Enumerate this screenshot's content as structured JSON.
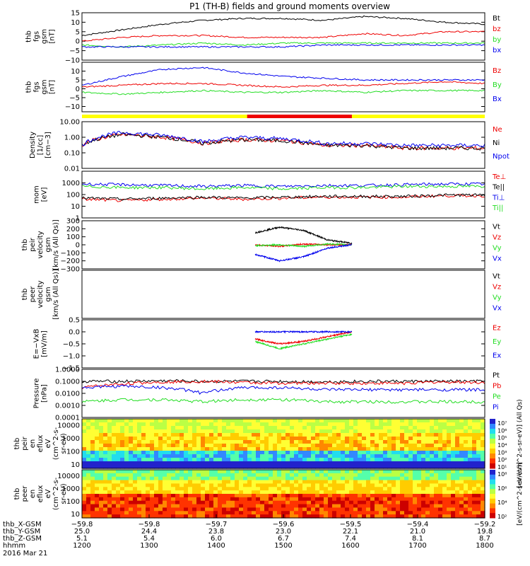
{
  "title": "P1 (TH-B) fields and ground moments overview",
  "footer_date": "2016 Mar 21",
  "colors": {
    "black": "#000000",
    "red": "#ee0000",
    "green": "#22dd22",
    "blue": "#0000ee",
    "yellow": "#ffff00"
  },
  "chart_data": [
    {
      "type": "line",
      "ylabel": [
        "thb",
        "fgs",
        "gsm",
        "[nT]"
      ],
      "ylim": [
        -10,
        15
      ],
      "yticks": [
        "15",
        "10",
        "5",
        "0",
        "−5",
        "−10"
      ],
      "yticks_values": [
        15,
        10,
        5,
        0,
        -5,
        -10
      ],
      "series": [
        {
          "name": "Bt",
          "color": "#000000",
          "approx_values": [
            3,
            6,
            9,
            11,
            12,
            12,
            11,
            13,
            12,
            10,
            9
          ]
        },
        {
          "name": "bz",
          "color": "#ee0000",
          "approx_values": [
            0,
            2,
            3,
            3,
            2,
            2,
            2,
            4,
            3,
            5,
            5
          ]
        },
        {
          "name": "by",
          "color": "#22dd22",
          "approx_values": [
            -2,
            -3,
            -2,
            -1,
            -2,
            -1,
            -1,
            -1,
            -1,
            -1,
            -1
          ]
        },
        {
          "name": "bx",
          "color": "#0000ee",
          "approx_values": [
            -3,
            -3,
            -3,
            -3,
            -3,
            -3,
            -2,
            -2,
            -2,
            -2,
            -2
          ]
        }
      ]
    },
    {
      "type": "line",
      "ylabel": [
        "thb",
        "fgs",
        "gsm",
        "[nT]"
      ],
      "ylim": [
        -13,
        15
      ],
      "yticks": [
        "10",
        "5",
        "0",
        "−5",
        "−10"
      ],
      "yticks_values": [
        10,
        5,
        0,
        -5,
        -10
      ],
      "series": [
        {
          "name": "Bz",
          "color": "#ee0000",
          "approx_values": [
            1,
            2,
            3,
            3,
            2,
            1,
            2,
            2,
            3,
            4,
            3
          ]
        },
        {
          "name": "By",
          "color": "#22dd22",
          "approx_values": [
            -2,
            -3,
            -2,
            -1,
            -2,
            -2,
            -1,
            -2,
            -1,
            -1,
            -1
          ]
        },
        {
          "name": "Bx",
          "color": "#0000ee",
          "approx_values": [
            2,
            7,
            11,
            12,
            9,
            7,
            6,
            5,
            5,
            5,
            5
          ]
        }
      ]
    },
    {
      "type": "line",
      "log": true,
      "ylabel": [
        "Density",
        "[1/cc]",
        "[cm−3]"
      ],
      "ylim": [
        0.01,
        10
      ],
      "yticks": [
        "10.00",
        "1.00",
        "0.10",
        "0.01"
      ],
      "yticks_values": [
        10,
        1,
        0.1,
        0.01
      ],
      "series": [
        {
          "name": "Ne",
          "color": "#ee0000",
          "approx_values": [
            0.3,
            1.5,
            1.0,
            0.4,
            0.7,
            0.6,
            0.3,
            0.3,
            0.2,
            0.2,
            0.2
          ]
        },
        {
          "name": "Ni",
          "color": "#000000",
          "approx_values": [
            0.3,
            1.5,
            1.0,
            0.4,
            0.7,
            0.6,
            0.3,
            0.3,
            0.2,
            0.2,
            0.2
          ]
        },
        {
          "name": "Npot",
          "color": "#0000ee",
          "approx_values": [
            0.3,
            2.0,
            1.3,
            0.5,
            1.0,
            0.8,
            0.4,
            0.4,
            0.3,
            0.3,
            0.3
          ]
        }
      ]
    },
    {
      "type": "line",
      "log": true,
      "ylabel": [
        "mom",
        "[eV]"
      ],
      "ylim": [
        1,
        10000
      ],
      "yticks": [
        "1000",
        "100",
        "10",
        "1"
      ],
      "yticks_values": [
        1000,
        100,
        10,
        1
      ],
      "series": [
        {
          "name": "Te⊥",
          "color": "#ee0000",
          "approx_values": [
            40,
            30,
            40,
            50,
            40,
            50,
            60,
            60,
            60,
            80,
            80
          ]
        },
        {
          "name": "Te||",
          "color": "#000000",
          "approx_values": [
            50,
            40,
            50,
            60,
            50,
            60,
            70,
            70,
            70,
            90,
            90
          ]
        },
        {
          "name": "Ti⊥",
          "color": "#0000ee",
          "approx_values": [
            800,
            700,
            600,
            500,
            600,
            500,
            600,
            600,
            700,
            800,
            800
          ]
        },
        {
          "name": "Ti||",
          "color": "#22dd22",
          "approx_values": [
            500,
            400,
            400,
            300,
            400,
            300,
            400,
            400,
            500,
            500,
            500
          ]
        }
      ]
    },
    {
      "type": "line",
      "ylabel": [
        "thb",
        "peir",
        "velocity",
        "gsm",
        "[km/s (All Qs)]"
      ],
      "ylim": [
        -300,
        300
      ],
      "yticks": [
        "300",
        "200",
        "100",
        "0",
        "−100",
        "−200",
        "−300"
      ],
      "yticks_values": [
        300,
        200,
        100,
        0,
        -100,
        -200,
        -300
      ],
      "series": [
        {
          "name": "Vt",
          "color": "#000000",
          "approx_values": [
            150,
            220,
            180,
            60,
            20
          ]
        },
        {
          "name": "Vz",
          "color": "#ee0000",
          "approx_values": [
            0,
            -20,
            10,
            0,
            0
          ]
        },
        {
          "name": "Vy",
          "color": "#22dd22",
          "approx_values": [
            -10,
            0,
            -20,
            10,
            0
          ]
        },
        {
          "name": "Vx",
          "color": "#0000ee",
          "approx_values": [
            -120,
            -200,
            -150,
            -40,
            0
          ]
        }
      ]
    },
    {
      "type": "line",
      "ylabel": [
        "thb",
        "peer",
        "velocity",
        "gsm",
        "[km/s (All Qs)]"
      ],
      "ylim": [
        0,
        1
      ],
      "yticks": [],
      "yticks_values": [],
      "series": [
        {
          "name": "Vt",
          "color": "#000000",
          "approx_values": []
        },
        {
          "name": "Vz",
          "color": "#ee0000",
          "approx_values": []
        },
        {
          "name": "Vy",
          "color": "#22dd22",
          "approx_values": []
        },
        {
          "name": "Vx",
          "color": "#0000ee",
          "approx_values": []
        }
      ]
    },
    {
      "type": "line",
      "ylabel": [
        "E=−VxB",
        "[mV/m]"
      ],
      "ylim": [
        -1.5,
        0.5
      ],
      "yticks": [
        "0.5",
        "0.0",
        "−0.5",
        "−1.0",
        "−1.5"
      ],
      "yticks_values": [
        0.5,
        0.0,
        -0.5,
        -1.0,
        -1.5
      ],
      "series": [
        {
          "name": "Ez",
          "color": "#ee0000",
          "approx_values": [
            -0.3,
            -0.5,
            -0.4,
            -0.2,
            0.0
          ]
        },
        {
          "name": "Ey",
          "color": "#22dd22",
          "approx_values": [
            -0.4,
            -0.7,
            -0.5,
            -0.3,
            -0.1
          ]
        },
        {
          "name": "Ex",
          "color": "#0000ee",
          "approx_values": [
            0.0,
            0.0,
            0.0,
            0.0,
            0.0
          ]
        }
      ]
    },
    {
      "type": "line",
      "log": true,
      "ylabel": [
        "Pressure",
        "[nPa]"
      ],
      "ylim": [
        0.0001,
        1
      ],
      "yticks": [
        "1.0000",
        "0.1000",
        "0.0100",
        "0.0010",
        "0.0001"
      ],
      "yticks_values": [
        1,
        0.1,
        0.01,
        0.001,
        0.0001
      ],
      "series": [
        {
          "name": "Pt",
          "color": "#000000",
          "approx_values": [
            0.1,
            0.1,
            0.11,
            0.1,
            0.1,
            0.1,
            0.09,
            0.1,
            0.1,
            0.1,
            0.1
          ]
        },
        {
          "name": "Pb",
          "color": "#ee0000",
          "approx_values": [
            0.03,
            0.06,
            0.09,
            0.1,
            0.08,
            0.07,
            0.07,
            0.07,
            0.07,
            0.09,
            0.08
          ]
        },
        {
          "name": "Pe",
          "color": "#22dd22",
          "approx_values": [
            0.002,
            0.003,
            0.003,
            0.002,
            0.003,
            0.003,
            0.002,
            0.002,
            0.002,
            0.002,
            0.002
          ]
        },
        {
          "name": "Pi",
          "color": "#0000ee",
          "approx_values": [
            0.03,
            0.04,
            0.03,
            0.01,
            0.03,
            0.03,
            0.02,
            0.02,
            0.02,
            0.02,
            0.02
          ]
        }
      ]
    },
    {
      "type": "heatmap",
      "ylabel": [
        "thb",
        "peir",
        "en",
        "eflux",
        "eV",
        "(cm^2-s-",
        "sr-eV)"
      ],
      "log": true,
      "ylim": [
        5,
        30000
      ],
      "yticks": [
        "10000",
        "1000",
        "100",
        "10"
      ],
      "yticks_values": [
        10000,
        1000,
        100,
        10
      ],
      "colorbar_label": "[eV/(cm^2-s-sr-eV)] (All Qs)",
      "colorbar_ticks": [
        "10⁷",
        "10⁶",
        "10⁵",
        "10⁴",
        "10³",
        "10²",
        "10¹"
      ]
    },
    {
      "type": "heatmap",
      "ylabel": [
        "thb",
        "peer",
        "en",
        "eflux",
        "eV",
        "(cm^2-s-",
        "sr-eV)"
      ],
      "log": true,
      "ylim": [
        5,
        30000
      ],
      "yticks": [
        "10000",
        "1000",
        "100",
        "10"
      ],
      "yticks_values": [
        10000,
        1000,
        100,
        10
      ],
      "colorbar_label": "[eV/(cm^2-s-sr-eV)]",
      "colorbar_ticks": [
        "10⁸",
        "10⁶",
        "10⁴",
        "10²"
      ]
    }
  ],
  "x_axis": {
    "row_labels": [
      "thb_X-GSM",
      "thb_Y-GSM",
      "thb_Z-GSM",
      "hhmm"
    ],
    "rows": [
      [
        "−59.8",
        "−59.8",
        "−59.7",
        "−59.6",
        "−59.5",
        "−59.4",
        "−59.2"
      ],
      [
        "25.0",
        "24.4",
        "23.8",
        "23.0",
        "22.1",
        "21.0",
        "19.8"
      ],
      [
        "5.1",
        "5.4",
        "6.0",
        "6.7",
        "7.4",
        "8.1",
        "8.7"
      ],
      [
        "1200",
        "1300",
        "1400",
        "1500",
        "1600",
        "1700",
        "1800"
      ]
    ]
  }
}
